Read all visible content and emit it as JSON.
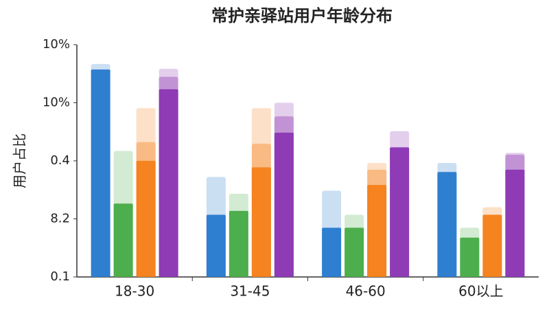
{
  "chart_data": {
    "type": "bar",
    "title": "常护亲驿站用户年龄分布",
    "y_label": "用户占比",
    "categories": [
      "18-30",
      "31-45",
      "46-60",
      "60以上"
    ],
    "series": [
      {
        "color": "#2f7fd0",
        "values": [
          1.19,
          0.21,
          0.18,
          0.35
        ],
        "mid": [
          null,
          null,
          null,
          null
        ],
        "high": [
          1.27,
          0.33,
          0.28,
          0.39
        ]
      },
      {
        "color": "#4cae4c",
        "values": [
          0.24,
          0.22,
          0.18,
          0.16
        ],
        "mid": [
          null,
          null,
          null,
          null
        ],
        "high": [
          0.45,
          0.27,
          0.21,
          0.18
        ]
      },
      {
        "color": "#f5831f",
        "values": [
          0.4,
          0.37,
          0.3,
          0.21
        ],
        "mid": [
          0.5,
          0.49,
          0.36,
          null
        ],
        "high": [
          0.75,
          0.75,
          0.39,
          0.23
        ]
      },
      {
        "color": "#8e3bb5",
        "values": [
          0.94,
          0.56,
          0.47,
          0.36
        ],
        "mid": [
          1.09,
          0.68,
          null,
          0.43
        ],
        "high": [
          1.2,
          0.8,
          0.57,
          0.44
        ]
      }
    ],
    "log_scale": true,
    "ylim": [
      0.1,
      1.6
    ],
    "yticks": [
      0.1,
      {
        "value": 0.2,
        "label": "8.2"
      },
      0.4,
      {
        "value": 0.8,
        "label": "10%"
      },
      {
        "value": 1.6,
        "label": "10%"
      }
    ]
  }
}
